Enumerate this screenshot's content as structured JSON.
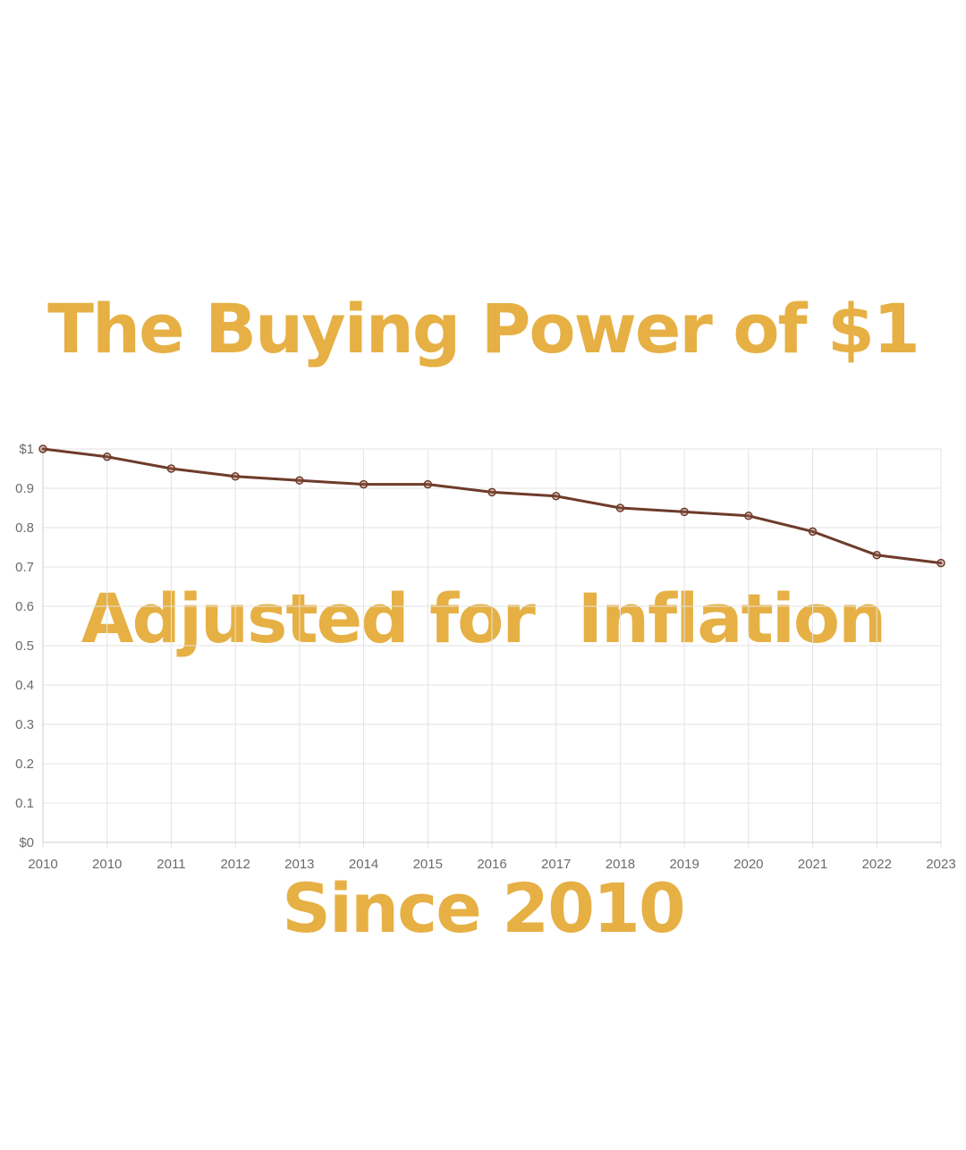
{
  "title": {
    "lines": [
      "The Buying Power of $1",
      "Adjusted for  Inflation",
      "Since 2010"
    ]
  },
  "colors": {
    "title": "#e6b044",
    "line": "#6e3b2a",
    "point_fill": "#9a5e4e"
  },
  "chart_data": {
    "type": "line",
    "title": "The Buying Power of $1 Adjusted for Inflation Since 2010",
    "xlabel": "",
    "ylabel": "",
    "categories": [
      "2010",
      "2010",
      "2011",
      "2012",
      "2013",
      "2014",
      "2015",
      "2016",
      "2017",
      "2018",
      "2019",
      "2020",
      "2021",
      "2022",
      "2023"
    ],
    "series": [
      {
        "values": [
          1.0,
          0.98,
          0.95,
          0.93,
          0.92,
          0.91,
          0.91,
          0.89,
          0.88,
          0.85,
          0.84,
          0.83,
          0.79,
          0.73,
          0.71
        ]
      }
    ],
    "ylim": [
      0,
      1
    ],
    "y_ticks": [
      {
        "value": 1.0,
        "label": "$1"
      },
      {
        "value": 0.9,
        "label": "0.9"
      },
      {
        "value": 0.8,
        "label": "0.8"
      },
      {
        "value": 0.7,
        "label": "0.7"
      },
      {
        "value": 0.6,
        "label": "0.6"
      },
      {
        "value": 0.5,
        "label": "0.5"
      },
      {
        "value": 0.4,
        "label": "0.4"
      },
      {
        "value": 0.3,
        "label": "0.3"
      },
      {
        "value": 0.2,
        "label": "0.2"
      },
      {
        "value": 0.1,
        "label": "0.1"
      },
      {
        "value": 0.0,
        "label": "$0"
      }
    ],
    "grid": true,
    "legend": "none"
  }
}
